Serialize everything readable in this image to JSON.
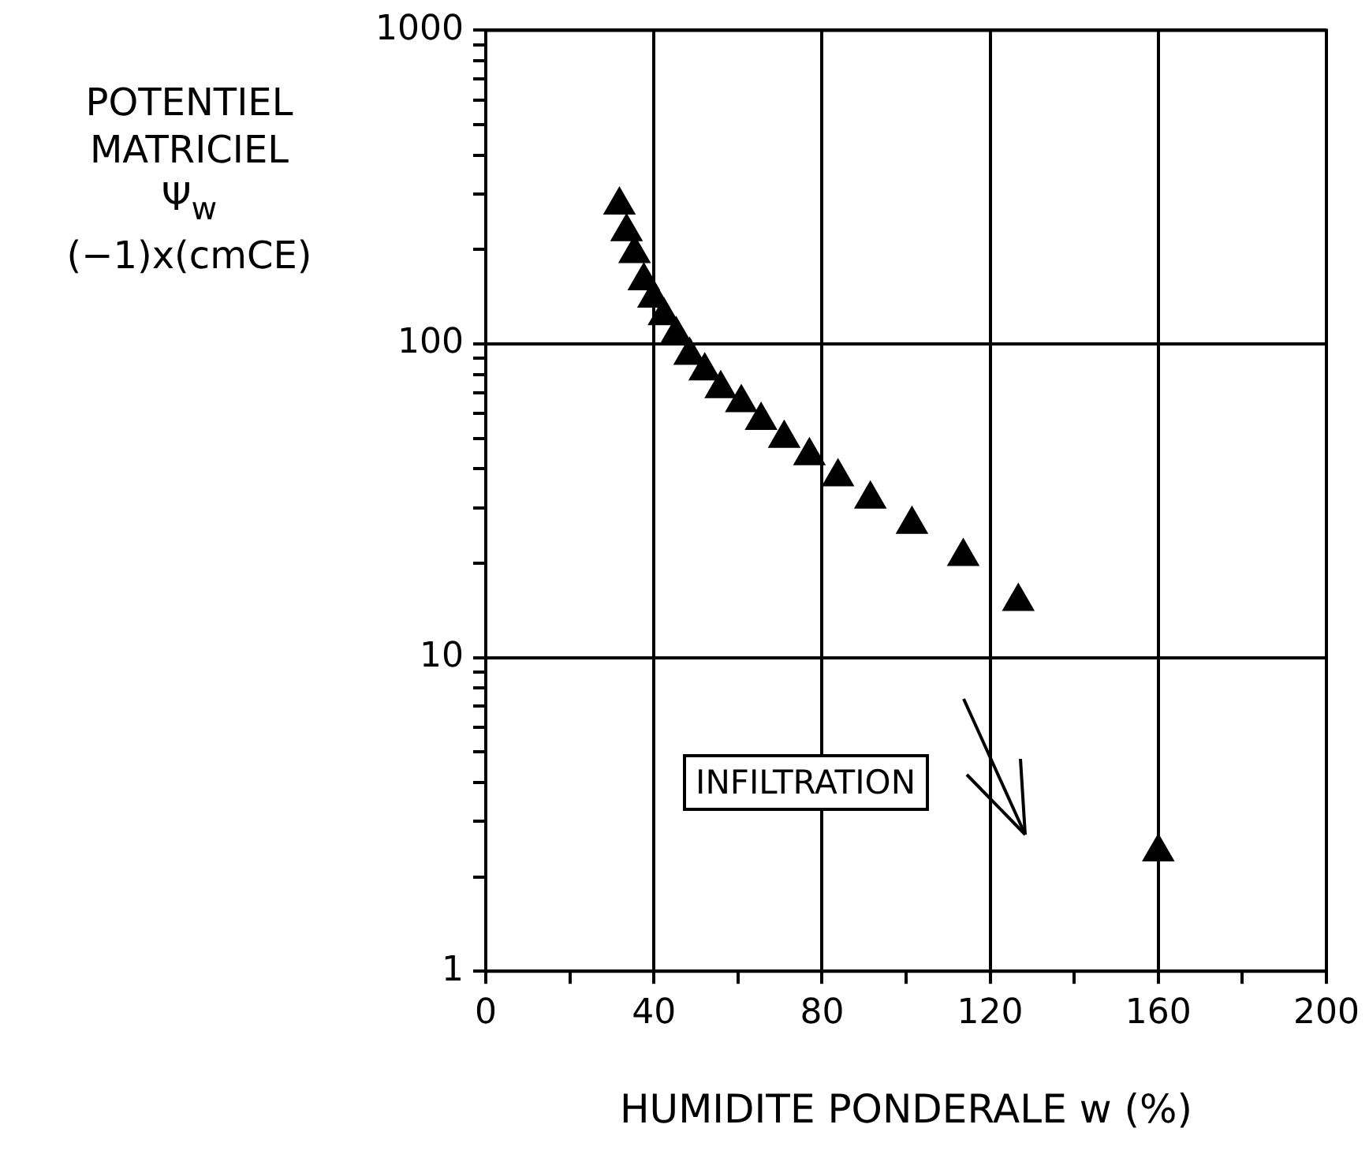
{
  "chart_data": {
    "type": "scatter",
    "xlabel": "HUMIDITE PONDERALE w (%)",
    "ylabel": "POTENTIEL\nMATRICIEL\nΨ$_{w}$\n(−1)x(cmCE)",
    "x": [
      31.8,
      33.5,
      35.4,
      37.6,
      39.9,
      42.4,
      45.3,
      48.5,
      52.1,
      55.9,
      60.8,
      65.5,
      71,
      77,
      83.8,
      91.5,
      101.4,
      113.6,
      126.7,
      160
    ],
    "series": [
      {
        "color": "#000000",
        "values": [
          277,
          228,
          194,
          159,
          140,
          123,
          107,
          92,
          82,
          72,
          65,
          57,
          50,
          44,
          37.7,
          32,
          26.6,
          21,
          15.1,
          2.4
        ]
      }
    ],
    "xlim": [
      0,
      200
    ],
    "xticks": [
      0,
      {
        "value": 20,
        "label": null
      },
      40,
      {
        "value": 60,
        "label": null
      },
      80,
      {
        "value": 100,
        "label": null
      },
      120,
      {
        "value": 140,
        "label": null
      },
      160,
      {
        "value": 180,
        "label": null
      },
      200
    ],
    "ylim": [
      1,
      1000
    ],
    "yticks": [
      1,
      {
        "value": 2,
        "label": null
      },
      {
        "value": 3,
        "label": null
      },
      {
        "value": 4,
        "label": null
      },
      {
        "value": 5,
        "label": null
      },
      {
        "value": 6,
        "label": null
      },
      {
        "value": 7,
        "label": null
      },
      {
        "value": 8,
        "label": null
      },
      {
        "value": 9,
        "label": null
      },
      10,
      {
        "value": 20,
        "label": null
      },
      {
        "value": 30,
        "label": null
      },
      {
        "value": 40,
        "label": null
      },
      {
        "value": 50,
        "label": null
      },
      {
        "value": 60,
        "label": null
      },
      {
        "value": 70,
        "label": null
      },
      {
        "value": 80,
        "label": null
      },
      {
        "value": 90,
        "label": null
      },
      100,
      {
        "value": 200,
        "label": null
      },
      {
        "value": 300,
        "label": null
      },
      {
        "value": 400,
        "label": null
      },
      {
        "value": 500,
        "label": null
      },
      {
        "value": 600,
        "label": null
      },
      {
        "value": 700,
        "label": null
      },
      {
        "value": 800,
        "label": null
      },
      {
        "value": 900,
        "label": null
      },
      1000
    ],
    "log": true,
    "grid": true,
    "marker": "triangle",
    "legend": false,
    "annotations": [
      "INFILTRATION"
    ]
  }
}
